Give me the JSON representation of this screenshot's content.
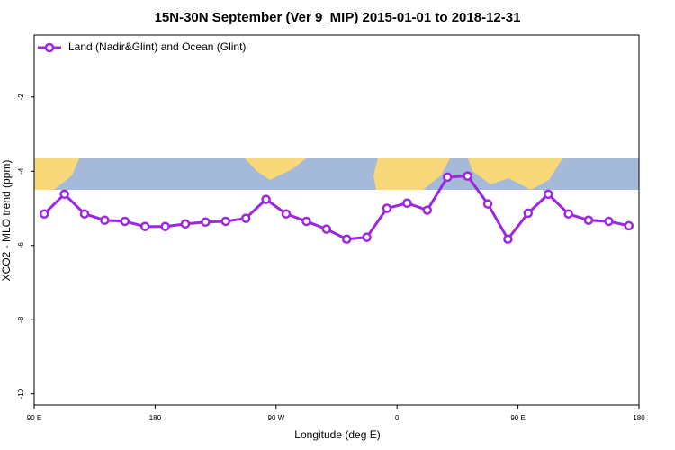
{
  "chart_data": {
    "type": "line",
    "title": "15N-30N September (Ver 9_MIP)   2015-01-01 to 2018-12-31",
    "x_label": "Longitude (deg E)",
    "y_label": "XCO2 - MLO trend (ppm)",
    "x": [
      97.5,
      112.5,
      127.5,
      142.5,
      157.5,
      172.5,
      187.5,
      202.5,
      217.5,
      232.5,
      247.5,
      262.5,
      277.5,
      292.5,
      307.5,
      322.5,
      337.5,
      352.5,
      367.5,
      382.5,
      397.5,
      412.5,
      427.5,
      442.5,
      457.5,
      472.5,
      487.5,
      502.5,
      517.5,
      532.5
    ],
    "series": [
      {
        "name": "Land (Nadir&Glint) and Ocean (Glint)",
        "color": "#9b27e0",
        "values": [
          -5.15,
          -4.62,
          -5.15,
          -5.32,
          -5.35,
          -5.49,
          -5.49,
          -5.42,
          -5.37,
          -5.35,
          -5.27,
          -4.76,
          -5.15,
          -5.35,
          -5.56,
          -5.83,
          -5.78,
          -5.0,
          -4.86,
          -5.05,
          -4.16,
          -4.13,
          -4.88,
          -5.83,
          -5.13,
          -4.62,
          -5.15,
          -5.32,
          -5.35,
          -5.47
        ]
      }
    ],
    "xlim": [
      90,
      540
    ],
    "xticks": [
      {
        "value": 90,
        "label": "90 E"
      },
      180,
      {
        "value": 270,
        "label": "90 W"
      },
      {
        "value": 360,
        "label": "0"
      },
      {
        "value": 450,
        "label": "90 E"
      },
      {
        "value": 540,
        "label": "180"
      }
    ],
    "ylim": [
      -10.3,
      -0.33
    ],
    "yticks": [
      -10,
      -8,
      -6,
      -4,
      -2
    ],
    "legend": "top-left"
  }
}
